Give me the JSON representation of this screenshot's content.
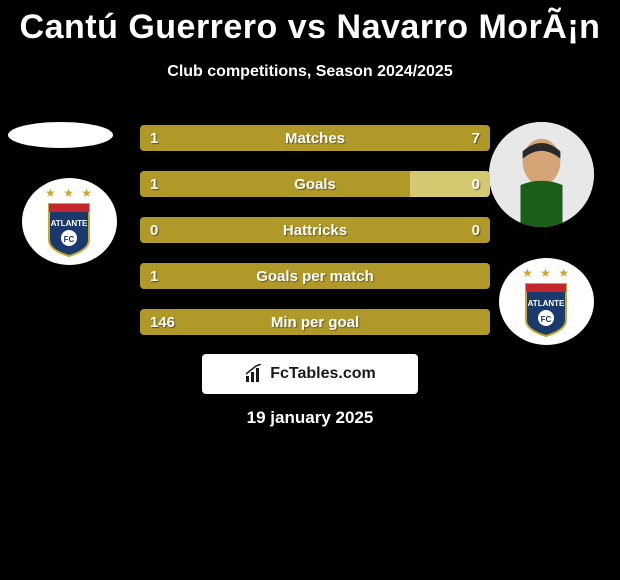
{
  "title": "Cantú Guerrero vs Navarro MorÃ¡n",
  "subtitle": "Club competitions, Season 2024/2025",
  "date": "19 january 2025",
  "watermark": "FcTables.com",
  "club_name": "ATLANTE",
  "stats": [
    {
      "label": "Matches",
      "left_value": "1",
      "right_value": "7",
      "left_width": 12.5,
      "right_width": 87.5,
      "left_color": "#b09928",
      "right_color": "#b09928"
    },
    {
      "label": "Goals",
      "left_value": "1",
      "right_value": "0",
      "left_width": 77,
      "right_width": 23,
      "left_color": "#b09928",
      "right_color": "#d4c870"
    },
    {
      "label": "Hattricks",
      "left_value": "0",
      "right_value": "0",
      "left_width": 50,
      "right_width": 50,
      "left_color": "#b09928",
      "right_color": "#b09928"
    },
    {
      "label": "Goals per match",
      "left_value": "1",
      "right_value": "",
      "left_width": 100,
      "right_width": 0,
      "left_color": "#b09928",
      "right_color": "#b09928"
    },
    {
      "label": "Min per goal",
      "left_value": "146",
      "right_value": "",
      "left_width": 100,
      "right_width": 0,
      "left_color": "#b09928",
      "right_color": "#b09928"
    }
  ],
  "colors": {
    "background": "#000000",
    "bar_primary": "#b09928",
    "bar_light": "#d4c870",
    "text": "#ffffff",
    "club_blue": "#1a3a6e",
    "club_red": "#c1272d",
    "club_gold": "#c9a830"
  }
}
